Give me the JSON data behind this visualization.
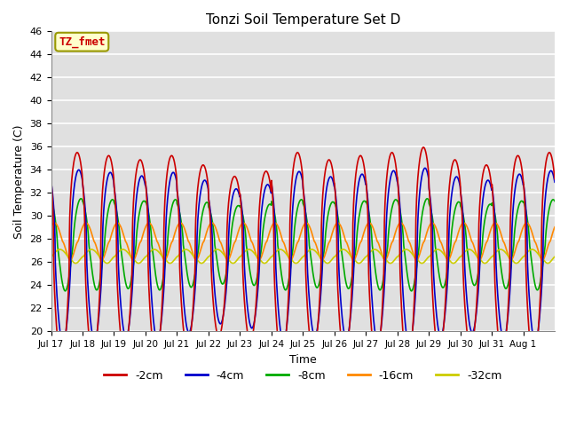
{
  "title": "Tonzi Soil Temperature Set D",
  "xlabel": "Time",
  "ylabel": "Soil Temperature (C)",
  "ylim": [
    20,
    46
  ],
  "xlim": [
    0,
    16
  ],
  "plot_bg_color": "#e0e0e0",
  "grid_color": "#ffffff",
  "tick_labels": [
    "Jul 17",
    "Jul 18",
    "Jul 19",
    "Jul 20",
    "Jul 21",
    "Jul 22",
    "Jul 23",
    "Jul 24",
    "Jul 25",
    "Jul 26",
    "Jul 27",
    "Jul 28",
    "Jul 29",
    "Jul 30",
    "Jul 31",
    "Aug 1"
  ],
  "legend_labels": [
    "-2cm",
    "-4cm",
    "-8cm",
    "-16cm",
    "-32cm"
  ],
  "annotation_text": "TZ_fmet",
  "annotation_bg": "#ffffcc",
  "annotation_border": "#999900",
  "series_colors": [
    "#cc0000",
    "#0000cc",
    "#00aa00",
    "#ff8800",
    "#cccc00"
  ],
  "yticks": [
    20,
    22,
    24,
    26,
    28,
    30,
    32,
    34,
    36,
    38,
    40,
    42,
    44,
    46
  ],
  "n_days": 16,
  "pts_per_day": 96,
  "params_2cm": {
    "base": 26.5,
    "amp": 9.0,
    "phase": 0.0,
    "sharp": 2.5
  },
  "params_4cm": {
    "base": 26.5,
    "amp": 7.5,
    "phase": 0.05,
    "sharp": 2.2
  },
  "params_8cm": {
    "base": 27.5,
    "amp": 4.0,
    "phase": 0.12,
    "sharp": 1.5
  },
  "params_16cm": {
    "base": 27.8,
    "amp": 1.6,
    "phase": 0.28,
    "sharp": 1.0
  },
  "params_32cm": {
    "base": 26.5,
    "amp": 0.6,
    "phase": 0.45,
    "sharp": 1.0
  },
  "day_amps_2cm": [
    1.0,
    0.97,
    0.93,
    0.97,
    0.88,
    0.77,
    0.82,
    1.0,
    0.93,
    0.97,
    1.0,
    1.05,
    0.93,
    0.88,
    0.97,
    1.0
  ],
  "day_amps_4cm": [
    1.0,
    0.97,
    0.93,
    0.97,
    0.88,
    0.78,
    0.83,
    0.98,
    0.92,
    0.95,
    0.99,
    1.02,
    0.92,
    0.88,
    0.95,
    0.99
  ],
  "day_amps_8cm": [
    1.0,
    0.98,
    0.95,
    0.98,
    0.92,
    0.85,
    0.88,
    0.98,
    0.93,
    0.95,
    0.98,
    1.0,
    0.93,
    0.88,
    0.95,
    0.98
  ],
  "day_amps_16cm": [
    1.0,
    1.0,
    1.0,
    1.0,
    1.0,
    1.0,
    1.0,
    1.0,
    1.0,
    1.0,
    1.0,
    1.0,
    1.0,
    1.0,
    1.0,
    1.0
  ],
  "day_amps_32cm": [
    1.0,
    1.0,
    1.0,
    1.0,
    1.0,
    1.0,
    1.0,
    1.0,
    1.0,
    1.0,
    1.0,
    1.0,
    1.0,
    1.0,
    1.0,
    1.0
  ]
}
